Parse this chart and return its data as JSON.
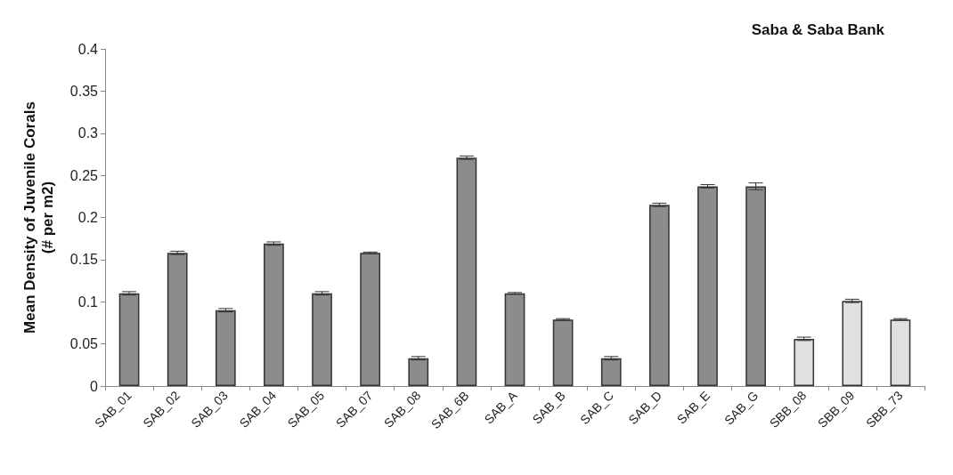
{
  "chart_data": {
    "type": "bar",
    "title": "Saba & Saba Bank",
    "ylabel": "Mean Density of Juvenile Corals\n(# per m2)",
    "categories": [
      "SAB_01",
      "SAB_02",
      "SAB_03",
      "SAB_04",
      "SAB_05",
      "SAB_07",
      "SAB_08",
      "SAB_6B",
      "SAB_A",
      "SAB_B",
      "SAB_C",
      "SAB_D",
      "SAB_E",
      "SAB_G",
      "SBB_08",
      "SBB_09",
      "SBB_73"
    ],
    "values": [
      0.11,
      0.158,
      0.09,
      0.169,
      0.11,
      0.158,
      0.033,
      0.271,
      0.11,
      0.079,
      0.033,
      0.215,
      0.237,
      0.237,
      0.056,
      0.101,
      0.079
    ],
    "errors": [
      0.002,
      0.002,
      0.002,
      0.002,
      0.002,
      0.001,
      0.002,
      0.002,
      0.001,
      0.001,
      0.002,
      0.002,
      0.002,
      0.004,
      0.002,
      0.002,
      0.001
    ],
    "colors": [
      "#8c8c8c",
      "#8c8c8c",
      "#8c8c8c",
      "#8c8c8c",
      "#8c8c8c",
      "#8c8c8c",
      "#8c8c8c",
      "#8c8c8c",
      "#8c8c8c",
      "#8c8c8c",
      "#8c8c8c",
      "#8c8c8c",
      "#8c8c8c",
      "#8c8c8c",
      "#e0e0e0",
      "#e0e0e0",
      "#e0e0e0"
    ],
    "ylim": [
      0,
      0.4
    ],
    "yticks": [
      0,
      0.05,
      0.1,
      0.15,
      0.2,
      0.25,
      0.3,
      0.35,
      0.4
    ],
    "grid": false
  }
}
